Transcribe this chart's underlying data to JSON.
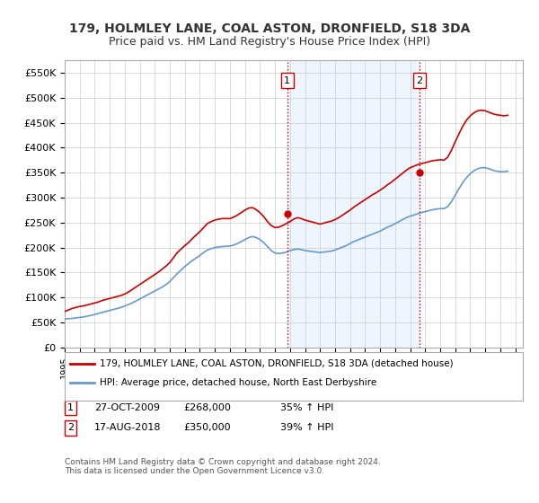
{
  "title": "179, HOLMLEY LANE, COAL ASTON, DRONFIELD, S18 3DA",
  "subtitle": "Price paid vs. HM Land Registry's House Price Index (HPI)",
  "ylabel_ticks": [
    "£0",
    "£50K",
    "£100K",
    "£150K",
    "£200K",
    "£250K",
    "£300K",
    "£350K",
    "£400K",
    "£450K",
    "£500K",
    "£550K"
  ],
  "ytick_values": [
    0,
    50000,
    100000,
    150000,
    200000,
    250000,
    300000,
    350000,
    400000,
    450000,
    500000,
    550000
  ],
  "ylim": [
    0,
    575000
  ],
  "xlim_start": 1995.0,
  "xlim_end": 2025.5,
  "sale1_x": 2009.82,
  "sale1_y": 268000,
  "sale2_x": 2018.63,
  "sale2_y": 350000,
  "marker_label1": "1",
  "marker_label2": "2",
  "vline1_x": 2009.82,
  "vline2_x": 2018.63,
  "red_color": "#cc0000",
  "blue_color": "#6699cc",
  "vline_color": "#cc0000",
  "vline_style": ":",
  "legend_line1": "179, HOLMLEY LANE, COAL ASTON, DRONFIELD, S18 3DA (detached house)",
  "legend_line2": "HPI: Average price, detached house, North East Derbyshire",
  "table_row1": [
    "1",
    "27-OCT-2009",
    "£268,000",
    "35% ↑ HPI"
  ],
  "table_row2": [
    "2",
    "17-AUG-2018",
    "£350,000",
    "39% ↑ HPI"
  ],
  "footer": "Contains HM Land Registry data © Crown copyright and database right 2024.\nThis data is licensed under the Open Government Licence v3.0.",
  "bg_color": "#ffffff",
  "plot_bg_color": "#ffffff",
  "grid_color": "#cccccc",
  "shaded_region_color": "#ddeeff",
  "title_fontsize": 10,
  "subtitle_fontsize": 9,
  "tick_fontsize": 8,
  "hpi_x": [
    1995.0,
    1995.25,
    1995.5,
    1995.75,
    1996.0,
    1996.25,
    1996.5,
    1996.75,
    1997.0,
    1997.25,
    1997.5,
    1997.75,
    1998.0,
    1998.25,
    1998.5,
    1998.75,
    1999.0,
    1999.25,
    1999.5,
    1999.75,
    2000.0,
    2000.25,
    2000.5,
    2000.75,
    2001.0,
    2001.25,
    2001.5,
    2001.75,
    2002.0,
    2002.25,
    2002.5,
    2002.75,
    2003.0,
    2003.25,
    2003.5,
    2003.75,
    2004.0,
    2004.25,
    2004.5,
    2004.75,
    2005.0,
    2005.25,
    2005.5,
    2005.75,
    2006.0,
    2006.25,
    2006.5,
    2006.75,
    2007.0,
    2007.25,
    2007.5,
    2007.75,
    2008.0,
    2008.25,
    2008.5,
    2008.75,
    2009.0,
    2009.25,
    2009.5,
    2009.75,
    2010.0,
    2010.25,
    2010.5,
    2010.75,
    2011.0,
    2011.25,
    2011.5,
    2011.75,
    2012.0,
    2012.25,
    2012.5,
    2012.75,
    2013.0,
    2013.25,
    2013.5,
    2013.75,
    2014.0,
    2014.25,
    2014.5,
    2014.75,
    2015.0,
    2015.25,
    2015.5,
    2015.75,
    2016.0,
    2016.25,
    2016.5,
    2016.75,
    2017.0,
    2017.25,
    2017.5,
    2017.75,
    2018.0,
    2018.25,
    2018.5,
    2018.75,
    2019.0,
    2019.25,
    2019.5,
    2019.75,
    2020.0,
    2020.25,
    2020.5,
    2020.75,
    2021.0,
    2021.25,
    2021.5,
    2021.75,
    2022.0,
    2022.25,
    2022.5,
    2022.75,
    2023.0,
    2023.25,
    2023.5,
    2023.75,
    2024.0,
    2024.25,
    2024.5
  ],
  "hpi_y": [
    57000,
    57500,
    58000,
    59000,
    60000,
    61000,
    62500,
    64000,
    66000,
    68000,
    70000,
    72000,
    74000,
    76000,
    78000,
    80000,
    83000,
    86000,
    89000,
    93000,
    97000,
    101000,
    105000,
    109000,
    113000,
    117000,
    121000,
    126000,
    132000,
    140000,
    148000,
    155000,
    162000,
    168000,
    174000,
    179000,
    184000,
    190000,
    195000,
    198000,
    200000,
    201000,
    202000,
    202500,
    203000,
    205000,
    208000,
    212000,
    216000,
    220000,
    222000,
    220000,
    216000,
    210000,
    202000,
    194000,
    189000,
    188000,
    189000,
    191000,
    194000,
    196000,
    197000,
    196000,
    194000,
    193000,
    192000,
    191000,
    190000,
    191000,
    192000,
    193000,
    195000,
    198000,
    201000,
    204000,
    208000,
    212000,
    215000,
    218000,
    221000,
    224000,
    227000,
    230000,
    233000,
    237000,
    241000,
    244000,
    248000,
    252000,
    256000,
    260000,
    263000,
    265000,
    268000,
    270000,
    272000,
    274000,
    276000,
    277000,
    278000,
    278000,
    282000,
    292000,
    305000,
    318000,
    330000,
    340000,
    348000,
    354000,
    358000,
    360000,
    360000,
    358000,
    355000,
    353000,
    352000,
    352000,
    353000
  ],
  "price_x": [
    1995.0,
    1995.25,
    1995.5,
    1995.75,
    1996.0,
    1996.25,
    1996.5,
    1996.75,
    1997.0,
    1997.25,
    1997.5,
    1997.75,
    1998.0,
    1998.25,
    1998.5,
    1998.75,
    1999.0,
    1999.25,
    1999.5,
    1999.75,
    2000.0,
    2000.25,
    2000.5,
    2000.75,
    2001.0,
    2001.25,
    2001.5,
    2001.75,
    2002.0,
    2002.25,
    2002.5,
    2002.75,
    2003.0,
    2003.25,
    2003.5,
    2003.75,
    2004.0,
    2004.25,
    2004.5,
    2004.75,
    2005.0,
    2005.25,
    2005.5,
    2005.75,
    2006.0,
    2006.25,
    2006.5,
    2006.75,
    2007.0,
    2007.25,
    2007.5,
    2007.75,
    2008.0,
    2008.25,
    2008.5,
    2008.75,
    2009.0,
    2009.25,
    2009.5,
    2009.75,
    2010.0,
    2010.25,
    2010.5,
    2010.75,
    2011.0,
    2011.25,
    2011.5,
    2011.75,
    2012.0,
    2012.25,
    2012.5,
    2012.75,
    2013.0,
    2013.25,
    2013.5,
    2013.75,
    2014.0,
    2014.25,
    2014.5,
    2014.75,
    2015.0,
    2015.25,
    2015.5,
    2015.75,
    2016.0,
    2016.25,
    2016.5,
    2016.75,
    2017.0,
    2017.25,
    2017.5,
    2017.75,
    2018.0,
    2018.25,
    2018.5,
    2018.75,
    2019.0,
    2019.25,
    2019.5,
    2019.75,
    2020.0,
    2020.25,
    2020.5,
    2020.75,
    2021.0,
    2021.25,
    2021.5,
    2021.75,
    2022.0,
    2022.25,
    2022.5,
    2022.75,
    2023.0,
    2023.25,
    2023.5,
    2023.75,
    2024.0,
    2024.25,
    2024.5
  ],
  "price_y": [
    72000,
    75000,
    78000,
    80000,
    82000,
    83000,
    85000,
    87000,
    89000,
    91000,
    94000,
    96000,
    98000,
    100000,
    102000,
    104000,
    107000,
    111000,
    116000,
    121000,
    126000,
    131000,
    136000,
    141000,
    146000,
    151000,
    157000,
    163000,
    170000,
    180000,
    190000,
    197000,
    204000,
    210000,
    218000,
    225000,
    232000,
    240000,
    248000,
    252000,
    255000,
    257000,
    258000,
    258000,
    258000,
    261000,
    265000,
    270000,
    275000,
    279000,
    280000,
    276000,
    270000,
    262000,
    252000,
    244000,
    240000,
    241000,
    244000,
    248000,
    252000,
    257000,
    260000,
    258000,
    255000,
    253000,
    251000,
    249000,
    247000,
    249000,
    251000,
    253000,
    256000,
    260000,
    265000,
    270000,
    275000,
    281000,
    286000,
    291000,
    296000,
    301000,
    306000,
    310000,
    315000,
    320000,
    326000,
    331000,
    337000,
    343000,
    349000,
    355000,
    360000,
    363000,
    366000,
    368000,
    370000,
    372000,
    374000,
    375000,
    376000,
    375000,
    381000,
    395000,
    412000,
    428000,
    443000,
    455000,
    464000,
    470000,
    474000,
    475000,
    474000,
    471000,
    468000,
    466000,
    465000,
    464000,
    465000
  ]
}
